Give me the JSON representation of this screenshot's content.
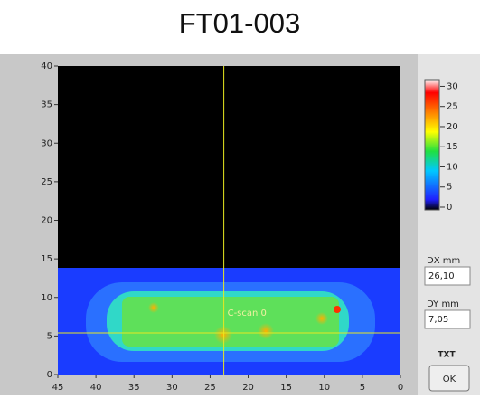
{
  "title": "FT01-003",
  "plot": {
    "xlim": [
      45,
      0
    ],
    "xticks": [
      45,
      40,
      35,
      30,
      25,
      20,
      15,
      10,
      5,
      0
    ],
    "ylim": [
      0,
      40
    ],
    "yticks": [
      0,
      5,
      10,
      15,
      20,
      25,
      30,
      35,
      40
    ],
    "cursor_label": "C-scan 0",
    "cursor": {
      "x": 23.2,
      "y": 5.4
    }
  },
  "colorbar": {
    "lim": [
      0,
      31
    ],
    "ticks": [
      0,
      5,
      10,
      15,
      20,
      25,
      30
    ]
  },
  "fields": [
    {
      "label": "DX mm",
      "value": "26,10"
    },
    {
      "label": "DY mm",
      "value": "7,05"
    }
  ],
  "txt": "TXT",
  "ok": "OK"
}
